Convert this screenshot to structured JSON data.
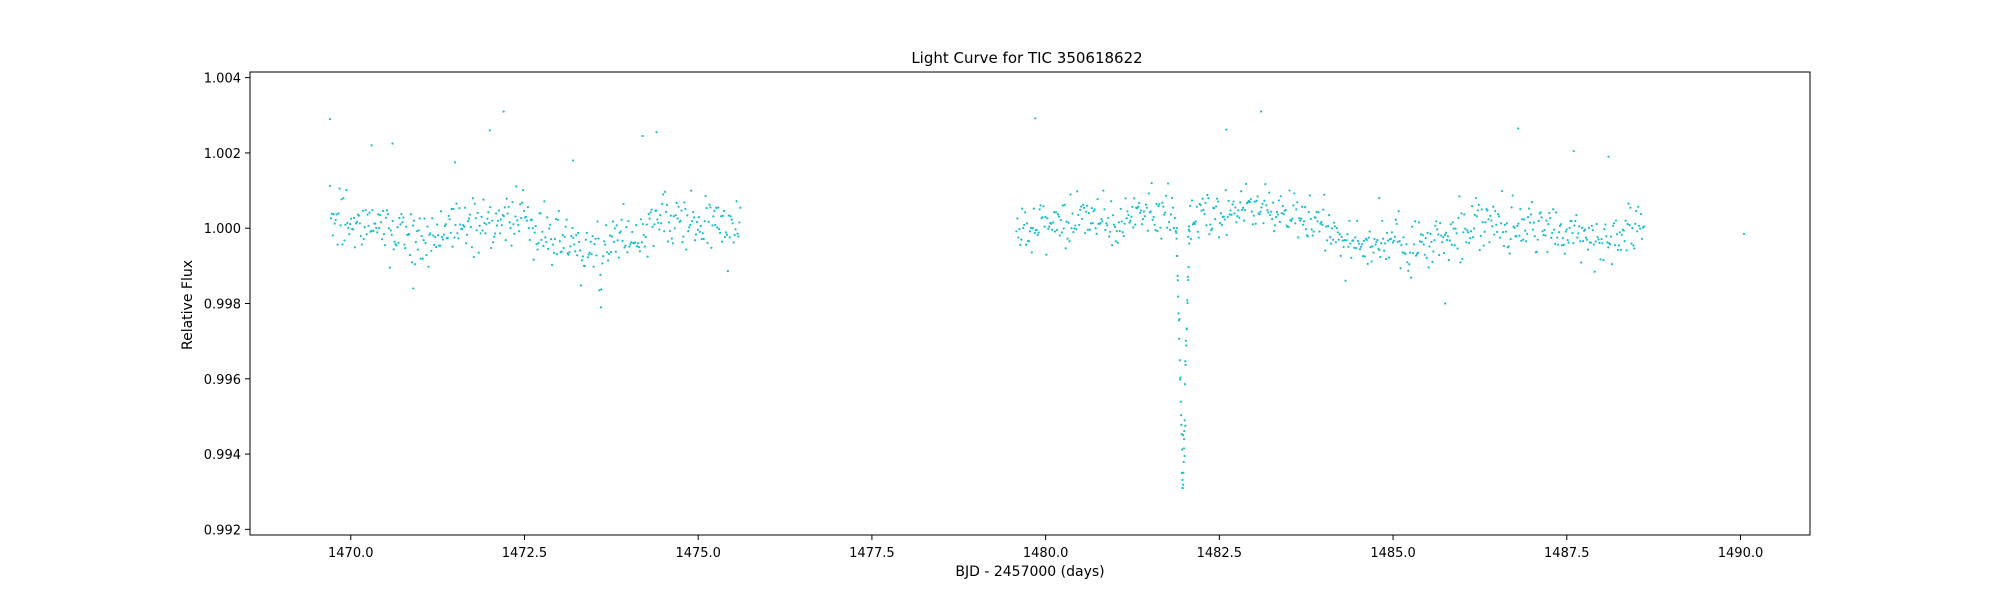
{
  "chart_data": {
    "type": "scatter",
    "title": "Light Curve for TIC 350618622",
    "xlabel": "BJD - 2457000 (days)",
    "ylabel": "Relative Flux",
    "xlim": [
      1468.55,
      1491.0
    ],
    "ylim": [
      0.99185,
      1.00415
    ],
    "xticks": [
      1470.0,
      1472.5,
      1475.0,
      1477.5,
      1480.0,
      1482.5,
      1485.0,
      1487.5,
      1490.0
    ],
    "xtick_labels": [
      "1470.0",
      "1472.5",
      "1475.0",
      "1477.5",
      "1480.0",
      "1482.5",
      "1485.0",
      "1487.5",
      "1490.0"
    ],
    "yticks": [
      0.992,
      0.994,
      0.996,
      0.998,
      1.0,
      1.002,
      1.004
    ],
    "ytick_labels": [
      "0.992",
      "0.994",
      "0.996",
      "0.998",
      "1.000",
      "1.002",
      "1.004"
    ],
    "grid": false,
    "legend": "none",
    "marker_color": "#17becf",
    "series": [
      {
        "cadence_days": 0.0139,
        "segments": [
          {
            "x_start": 1469.7,
            "x_end": 1475.62,
            "baseline": [
              [
                1469.7,
                1.00025
              ],
              [
                1470.5,
                0.9999
              ],
              [
                1471.3,
                0.9998
              ],
              [
                1472.0,
                1.0002
              ],
              [
                1472.5,
                1.0002
              ],
              [
                1473.0,
                0.9997
              ],
              [
                1473.5,
                0.99935
              ],
              [
                1474.0,
                0.9998
              ],
              [
                1474.5,
                1.0003
              ],
              [
                1475.0,
                1.0001
              ],
              [
                1475.62,
                0.99995
              ]
            ],
            "scatter": 0.00045
          },
          {
            "x_start": 1479.58,
            "x_end": 1481.9,
            "baseline": [
              [
                1479.58,
                0.9999
              ],
              [
                1480.3,
                1.0001
              ],
              [
                1480.9,
                1.0002
              ],
              [
                1481.5,
                1.0004
              ],
              [
                1481.9,
                1.0003
              ]
            ],
            "scatter": 0.00042
          },
          {
            "x_start": 1482.05,
            "x_end": 1488.62,
            "baseline": [
              [
                1482.05,
                1.0002
              ],
              [
                1482.8,
                1.0005
              ],
              [
                1483.3,
                1.0005
              ],
              [
                1484.0,
                1.0001
              ],
              [
                1484.6,
                0.99955
              ],
              [
                1485.2,
                0.99955
              ],
              [
                1485.8,
                0.9998
              ],
              [
                1486.3,
                1.0001
              ],
              [
                1486.9,
                1.0
              ],
              [
                1487.5,
                0.9999
              ],
              [
                1488.0,
                0.99965
              ],
              [
                1488.62,
                0.9999
              ]
            ],
            "scatter": 0.00042
          }
        ],
        "transit": {
          "x_start": 1481.88,
          "x_end": 1482.07,
          "x_center": 1481.975,
          "depth_min": 0.993,
          "bottom_points": [
            [
              1481.96,
              0.9935
            ],
            [
              1481.97,
              0.9931
            ],
            [
              1481.98,
              0.9945
            ],
            [
              1481.99,
              0.99415
            ],
            [
              1482.0,
              0.99395
            ],
            [
              1482.01,
              0.99475
            ]
          ]
        },
        "outliers": [
          [
            1469.7,
            1.0029
          ],
          [
            1470.3,
            1.0022
          ],
          [
            1470.6,
            1.00225
          ],
          [
            1471.5,
            1.00175
          ],
          [
            1472.0,
            1.0026
          ],
          [
            1472.2,
            1.0031
          ],
          [
            1473.2,
            1.0018
          ],
          [
            1474.2,
            1.00245
          ],
          [
            1474.4,
            1.00255
          ],
          [
            1479.85,
            1.00292
          ],
          [
            1482.6,
            1.00262
          ],
          [
            1483.1,
            1.0031
          ],
          [
            1484.8,
            1.0008
          ],
          [
            1486.8,
            1.00265
          ],
          [
            1487.6,
            1.00205
          ],
          [
            1488.1,
            1.0019
          ],
          [
            1490.05,
            0.99985
          ],
          [
            1473.6,
            0.9979
          ],
          [
            1485.75,
            0.998
          ],
          [
            1470.9,
            0.9984
          ]
        ]
      }
    ]
  }
}
